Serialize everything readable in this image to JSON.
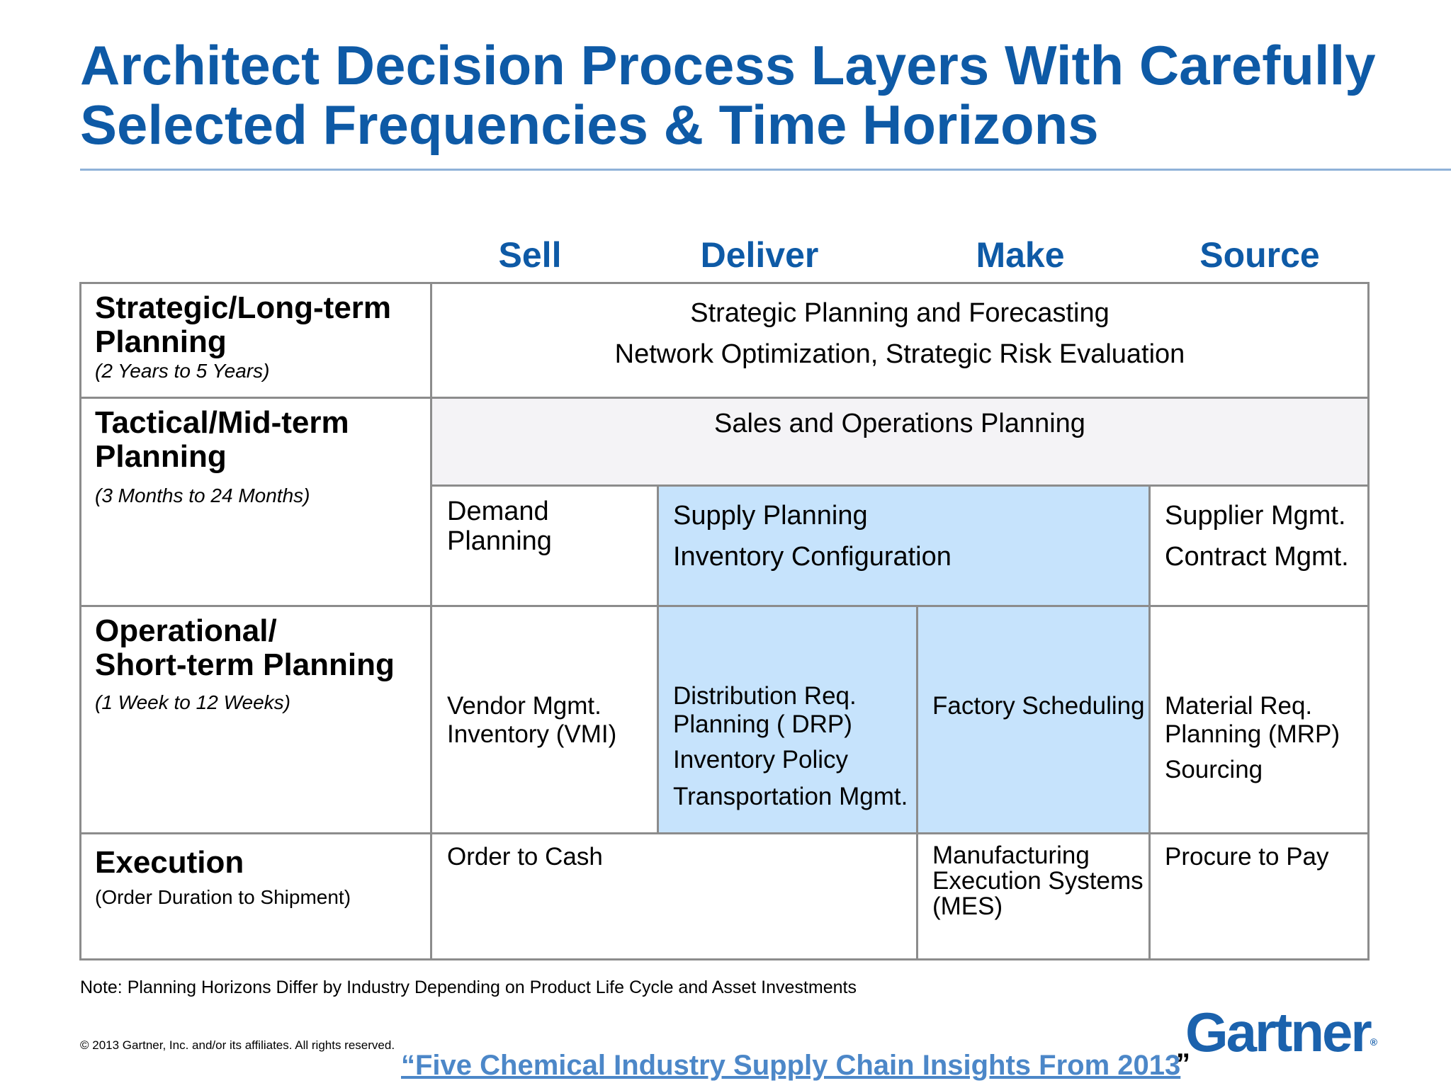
{
  "title": {
    "line1": "Architect Decision Process Layers With Carefully",
    "line2": "Selected Frequencies & Time Horizons"
  },
  "columns": [
    "Sell",
    "Deliver",
    "Make",
    "Source"
  ],
  "rows": {
    "strategic": {
      "label": "Strategic/Long-term Planning",
      "horizon": "(2 Years to 5 Years)",
      "line1": "Strategic Planning and Forecasting",
      "line2": "Network Optimization, Strategic Risk Evaluation"
    },
    "tactical": {
      "label": "Tactical/Mid-term Planning",
      "horizon": "(3 Months to 24 Months)",
      "sop": "Sales and Operations Planning",
      "demand": "Demand Planning",
      "supply1": "Supply Planning",
      "supply2": "Inventory Configuration",
      "supplier1": "Supplier Mgmt.",
      "supplier2": "Contract Mgmt."
    },
    "operational": {
      "label1": "Operational/",
      "label2": "Short-term Planning",
      "horizon": "(1 Week to 12 Weeks)",
      "vmi": "Vendor Mgmt. Inventory (VMI)",
      "drp": "Distribution Req. Planning ( DRP)",
      "policy": "Inventory Policy",
      "transport": "Transportation Mgmt.",
      "factory": "Factory Scheduling",
      "mrp": "Material Req. Planning (MRP)",
      "sourcing": "Sourcing"
    },
    "execution": {
      "label": "Execution",
      "horizon": "(Order Duration to Shipment)",
      "otc": "Order to Cash",
      "mes": "Manufacturing Execution Systems (MES)",
      "ptp": "Procure to Pay"
    }
  },
  "note": "Note: Planning Horizons Differ by Industry Depending on Product Life Cycle and Asset Investments",
  "copyright": "© 2013 Gartner, Inc. and/or its affiliates. All rights reserved.",
  "logo_text": "Gartner",
  "logo_mark": "®",
  "source_link": "“Five Chemical Industry Supply Chain Insights From 2013",
  "source_link_close": "”",
  "colors": {
    "title_blue": "#0e5aa6",
    "highlight_blue": "#c6e3fc",
    "sop_grey": "#f4f3f6",
    "border_grey": "#8c8c8c",
    "link_blue": "#4c87c8"
  }
}
